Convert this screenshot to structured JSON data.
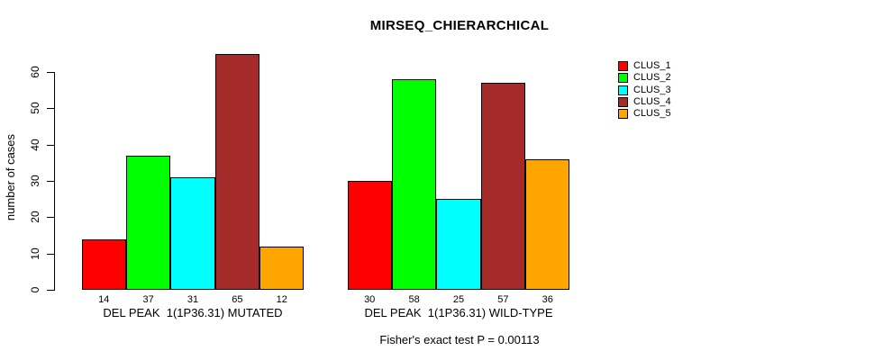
{
  "chart_data": {
    "type": "bar",
    "title": "MIRSEQ_CHIERARCHICAL",
    "ylabel": "number of cases",
    "ylim": [
      0,
      65
    ],
    "yticks": [
      0,
      10,
      20,
      30,
      40,
      50,
      60
    ],
    "grid": false,
    "bar_value_labels": true,
    "series_names": [
      "CLUS_1",
      "CLUS_2",
      "CLUS_3",
      "CLUS_4",
      "CLUS_5"
    ],
    "series_colors": [
      "#FF0000",
      "#00FF00",
      "#00FFFF",
      "#A52A2A",
      "#FFA500"
    ],
    "groups": [
      {
        "label": "DEL PEAK  1(1P36.31) MUTATED",
        "values": [
          14,
          37,
          31,
          65,
          12
        ]
      },
      {
        "label": "DEL PEAK  1(1P36.31) WILD-TYPE",
        "values": [
          30,
          58,
          25,
          57,
          36
        ]
      }
    ],
    "legend": {
      "position": "top-right",
      "items": [
        {
          "label": "CLUS_1",
          "color": "#FF0000"
        },
        {
          "label": "CLUS_2",
          "color": "#00FF00"
        },
        {
          "label": "CLUS_3",
          "color": "#00FFFF"
        },
        {
          "label": "CLUS_4",
          "color": "#A52A2A"
        },
        {
          "label": "CLUS_5",
          "color": "#FFA500"
        }
      ]
    },
    "caption": "Fisher's exact test P = 0.00113"
  }
}
